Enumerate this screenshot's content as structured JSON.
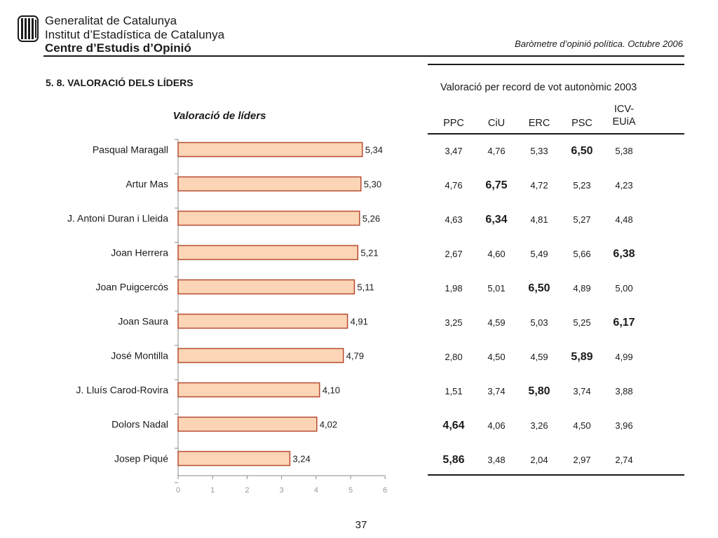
{
  "header": {
    "line1": "Generalitat de Catalunya",
    "line2": "Institut d’Estadística de Catalunya",
    "line3": "Centre d’Estudis d’Opinió",
    "report_title": "Baròmetre d’opinió política. Octubre 2006"
  },
  "section_title": "5. 8. VALORACIÓ DELS LÍDERS",
  "chart_data": {
    "type": "bar",
    "orientation": "horizontal",
    "title": "Valoració de líders",
    "categories": [
      "Pasqual Maragall",
      "Artur Mas",
      "J. Antoni Duran i Lleida",
      "Joan Herrera",
      "Joan Puigcercós",
      "Joan Saura",
      "José Montilla",
      "J. Lluís Carod-Rovira",
      "Dolors Nadal",
      "Josep Piqué"
    ],
    "values": [
      5.34,
      5.3,
      5.26,
      5.21,
      5.11,
      4.91,
      4.79,
      4.1,
      4.02,
      3.24
    ],
    "value_labels": [
      "5,34",
      "5,30",
      "5,26",
      "5,21",
      "5,11",
      "4,91",
      "4,79",
      "4,10",
      "4,02",
      "3,24"
    ],
    "xlim": [
      0,
      6
    ],
    "xticks": [
      "0",
      "1",
      "2",
      "3",
      "4",
      "5",
      "6"
    ],
    "bar_fill": "#fbd5b5",
    "bar_stroke": "#b84a32",
    "axis_color": "#8a8a8a"
  },
  "table": {
    "caption": "Valoració per record de vot autonòmic 2003",
    "columns": [
      {
        "line1": "PPC",
        "line2": ""
      },
      {
        "line1": "CiU",
        "line2": ""
      },
      {
        "line1": "ERC",
        "line2": ""
      },
      {
        "line1": "PSC",
        "line2": ""
      },
      {
        "line1": "ICV-",
        "line2": "EUiA"
      }
    ],
    "rows": [
      {
        "values": [
          "3,47",
          "4,76",
          "5,33",
          "6,50",
          "5,38"
        ],
        "highlight": 3
      },
      {
        "values": [
          "4,76",
          "6,75",
          "4,72",
          "5,23",
          "4,23"
        ],
        "highlight": 1
      },
      {
        "values": [
          "4,63",
          "6,34",
          "4,81",
          "5,27",
          "4,48"
        ],
        "highlight": 1
      },
      {
        "values": [
          "2,67",
          "4,60",
          "5,49",
          "5,66",
          "6,38"
        ],
        "highlight": 4
      },
      {
        "values": [
          "1,98",
          "5,01",
          "6,50",
          "4,89",
          "5,00"
        ],
        "highlight": 2
      },
      {
        "values": [
          "3,25",
          "4,59",
          "5,03",
          "5,25",
          "6,17"
        ],
        "highlight": 4
      },
      {
        "values": [
          "2,80",
          "4,50",
          "4,59",
          "5,89",
          "4,99"
        ],
        "highlight": 3
      },
      {
        "values": [
          "1,51",
          "3,74",
          "5,80",
          "3,74",
          "3,88"
        ],
        "highlight": 2
      },
      {
        "values": [
          "4,64",
          "4,06",
          "3,26",
          "4,50",
          "3,96"
        ],
        "highlight": 0
      },
      {
        "values": [
          "5,86",
          "3,48",
          "2,04",
          "2,97",
          "2,74"
        ],
        "highlight": 0
      }
    ]
  },
  "page_number": "37"
}
